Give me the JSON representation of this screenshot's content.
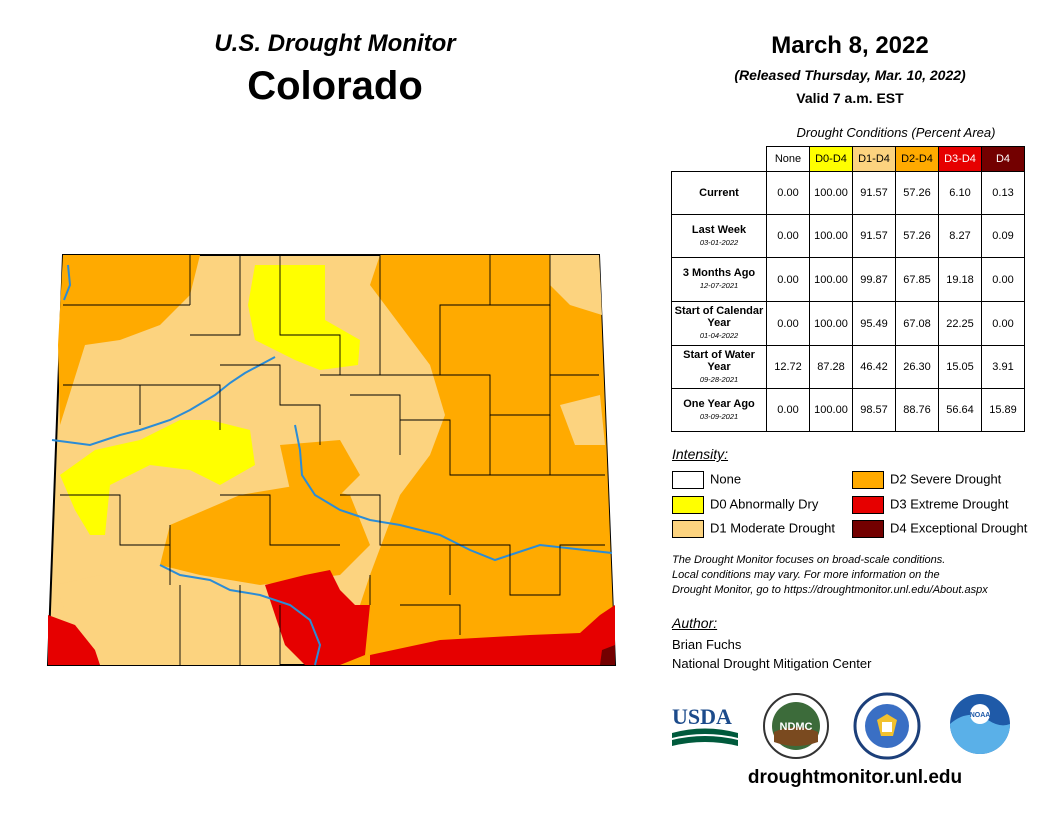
{
  "header": {
    "product_title": "U.S. Drought Monitor",
    "state": "Colorado",
    "date": "March 8, 2022",
    "released": "(Released Thursday, Mar. 10, 2022)",
    "valid": "Valid 7 a.m. EST"
  },
  "table": {
    "caption": "Drought Conditions (Percent Area)",
    "columns": [
      "None",
      "D0-D4",
      "D1-D4",
      "D2-D4",
      "D3-D4",
      "D4"
    ],
    "column_colors": [
      "#ffffff",
      "#ffff00",
      "#fcd37f",
      "#ffaa00",
      "#e60000",
      "#730000"
    ],
    "rows": [
      {
        "label": "Current",
        "sublabel": "",
        "values": [
          "0.00",
          "100.00",
          "91.57",
          "57.26",
          "6.10",
          "0.13"
        ]
      },
      {
        "label": "Last Week",
        "sublabel": "03-01-2022",
        "values": [
          "0.00",
          "100.00",
          "91.57",
          "57.26",
          "8.27",
          "0.09"
        ]
      },
      {
        "label": "3 Months Ago",
        "sublabel": "12-07-2021",
        "values": [
          "0.00",
          "100.00",
          "99.87",
          "67.85",
          "19.18",
          "0.00"
        ]
      },
      {
        "label": "Start of Calendar Year",
        "sublabel": "01-04-2022",
        "values": [
          "0.00",
          "100.00",
          "95.49",
          "67.08",
          "22.25",
          "0.00"
        ]
      },
      {
        "label": "Start of Water Year",
        "sublabel": "09-28-2021",
        "values": [
          "12.72",
          "87.28",
          "46.42",
          "26.30",
          "15.05",
          "3.91"
        ]
      },
      {
        "label": "One Year Ago",
        "sublabel": "03-09-2021",
        "values": [
          "0.00",
          "100.00",
          "98.57",
          "88.76",
          "56.64",
          "15.89"
        ]
      }
    ]
  },
  "legend": {
    "title": "Intensity:",
    "items": [
      {
        "label": "None",
        "color": "#ffffff"
      },
      {
        "label": "D0 Abnormally Dry",
        "color": "#ffff00"
      },
      {
        "label": "D1 Moderate Drought",
        "color": "#fcd37f"
      },
      {
        "label": "D2 Severe Drought",
        "color": "#ffaa00"
      },
      {
        "label": "D3 Extreme Drought",
        "color": "#e60000"
      },
      {
        "label": "D4 Exceptional Drought",
        "color": "#730000"
      }
    ]
  },
  "note": {
    "line1": "The Drought Monitor focuses on broad-scale conditions.",
    "line2": "Local conditions may vary. For more information on the",
    "line3": "Drought Monitor, go to https://droughtmonitor.unl.edu/About.aspx"
  },
  "author": {
    "title": "Author:",
    "name": "Brian Fuchs",
    "org": "National Drought Mitigation Center"
  },
  "logos": {
    "usda": "USDA",
    "ndmc": "NDMC",
    "noaa": "NOAA",
    "doc_icon": "eagle-seal-icon"
  },
  "footer": {
    "url": "droughtmonitor.unl.edu"
  },
  "colors": {
    "d0": "#ffff00",
    "d1": "#fcd37f",
    "d2": "#ffaa00",
    "d3": "#e60000",
    "d4": "#730000",
    "river": "#2b8cd6"
  }
}
